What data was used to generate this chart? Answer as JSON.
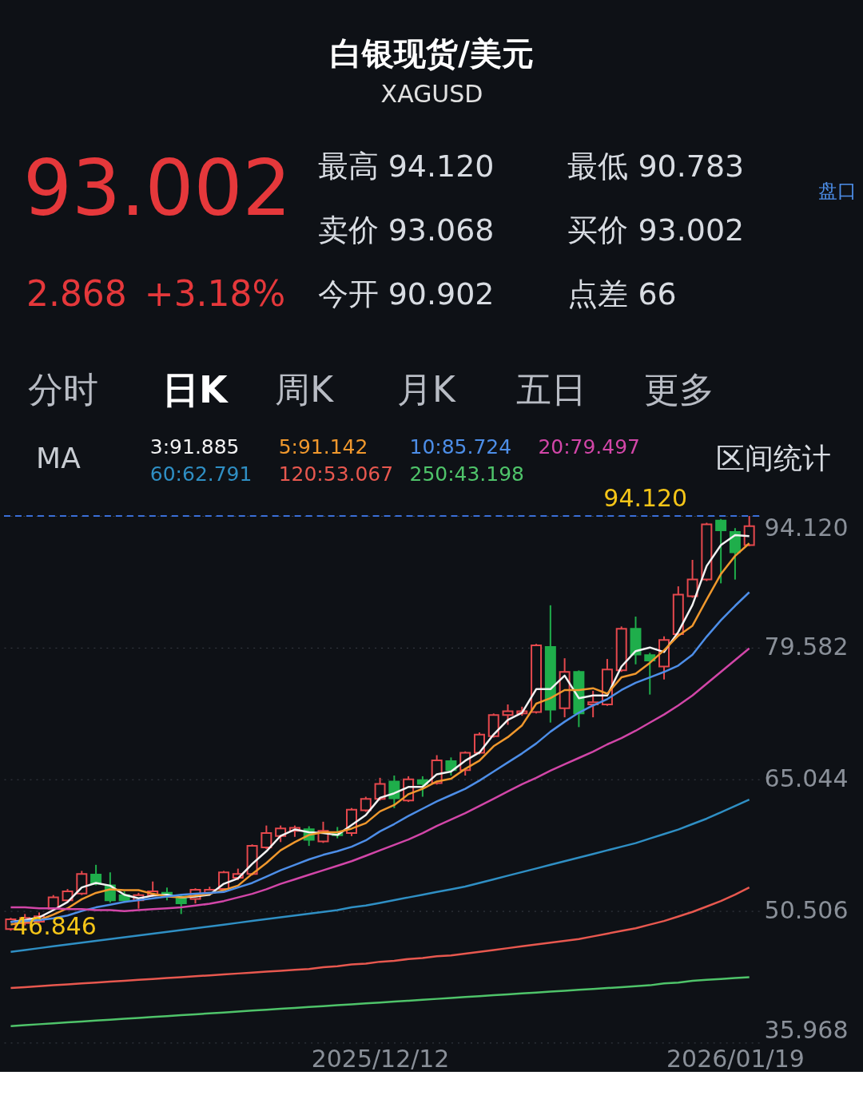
{
  "chart_data": {
    "type": "candlestick",
    "title": "白银现货/美元",
    "subtitle": "XAGUSD",
    "categories": [
      null,
      null,
      null,
      null,
      null,
      null,
      null,
      null,
      null,
      null,
      null,
      null,
      null,
      null,
      null,
      null,
      null,
      null,
      null,
      null,
      null,
      null,
      null,
      null,
      null,
      null,
      "2025/12/12",
      null,
      null,
      null,
      null,
      null,
      null,
      null,
      null,
      null,
      null,
      null,
      null,
      null,
      null,
      null,
      null,
      null,
      null,
      null,
      null,
      null,
      null,
      null,
      null,
      "2026/01/19",
      null
    ],
    "ohlc": [
      [
        48.5,
        49.75,
        48.33,
        49.59
      ],
      [
        49.17,
        50.17,
        48.92,
        49.75
      ],
      [
        49.33,
        50.34,
        49.17,
        49.92
      ],
      [
        50.76,
        52.26,
        50.59,
        52.01
      ],
      [
        51.68,
        52.93,
        51.51,
        52.68
      ],
      [
        52.43,
        54.93,
        52.26,
        54.6
      ],
      [
        54.52,
        55.6,
        53.34,
        53.51
      ],
      [
        53.34,
        54.77,
        51.43,
        51.68
      ],
      [
        52.26,
        52.68,
        51.43,
        51.68
      ],
      [
        51.68,
        52.51,
        50.76,
        52.26
      ],
      [
        52.26,
        53.76,
        52.09,
        52.68
      ],
      [
        52.51,
        53.09,
        51.68,
        52.09
      ],
      [
        52.09,
        52.26,
        50.17,
        51.34
      ],
      [
        51.84,
        53.01,
        51.34,
        52.84
      ],
      [
        52.51,
        53.18,
        52.34,
        52.84
      ],
      [
        52.93,
        54.93,
        52.76,
        54.77
      ],
      [
        54.18,
        55.18,
        53.93,
        54.6
      ],
      [
        54.6,
        57.86,
        54.43,
        57.69
      ],
      [
        57.52,
        59.94,
        57.35,
        59.11
      ],
      [
        58.77,
        59.94,
        58.11,
        59.61
      ],
      [
        59.36,
        59.94,
        58.69,
        59.69
      ],
      [
        59.53,
        59.86,
        57.69,
        58.36
      ],
      [
        58.19,
        60.36,
        58.02,
        59.36
      ],
      [
        59.19,
        59.78,
        58.53,
        58.86
      ],
      [
        59.11,
        61.87,
        58.77,
        61.7
      ],
      [
        61.62,
        63.12,
        61.45,
        62.87
      ],
      [
        62.87,
        65.21,
        62.7,
        64.54
      ],
      [
        64.79,
        65.46,
        61.87,
        62.95
      ],
      [
        62.7,
        65.38,
        62.54,
        65.04
      ],
      [
        64.96,
        65.38,
        63.12,
        64.54
      ],
      [
        64.63,
        67.71,
        64.46,
        67.13
      ],
      [
        67.05,
        67.46,
        65.46,
        66.05
      ],
      [
        66.05,
        68.13,
        65.46,
        67.97
      ],
      [
        67.97,
        70.22,
        67.8,
        69.97
      ],
      [
        69.8,
        72.31,
        69.64,
        72.15
      ],
      [
        72.15,
        73.31,
        71.06,
        72.56
      ],
      [
        72.31,
        73.06,
        72.06,
        72.56
      ],
      [
        72.48,
        80.0,
        72.31,
        79.83
      ],
      [
        79.66,
        84.26,
        71.31,
        72.73
      ],
      [
        72.9,
        78.41,
        71.89,
        76.9
      ],
      [
        76.9,
        77.07,
        70.81,
        72.31
      ],
      [
        73.31,
        74.82,
        71.89,
        73.56
      ],
      [
        73.31,
        78.33,
        73.15,
        77.16
      ],
      [
        77.07,
        81.92,
        76.9,
        81.67
      ],
      [
        81.67,
        83.01,
        77.74,
        78.83
      ],
      [
        78.75,
        79.0,
        74.4,
        78.16
      ],
      [
        77.49,
        80.83,
        76.07,
        80.42
      ],
      [
        81.08,
        86.35,
        80.92,
        85.43
      ],
      [
        85.26,
        89.27,
        85.09,
        87.1
      ],
      [
        87.1,
        93.37,
        86.93,
        93.2
      ],
      [
        93.62,
        93.79,
        86.68,
        92.53
      ],
      [
        92.36,
        92.78,
        87.1,
        90.11
      ],
      [
        90.902,
        94.12,
        90.783,
        93.002
      ]
    ],
    "colors": [
      "#e5484d",
      "#e5484d",
      "#e5484d",
      "#e5484d",
      "#e5484d",
      "#e5484d",
      "#1fae4b",
      "#1fae4b",
      "#1fae4b",
      "#e5484d",
      "#e5484d",
      "#1fae4b",
      "#1fae4b",
      "#e5484d",
      "#e5484d",
      "#e5484d",
      "#e5484d",
      "#e5484d",
      "#e5484d",
      "#e5484d",
      "#e5484d",
      "#1fae4b",
      "#e5484d",
      "#1fae4b",
      "#e5484d",
      "#e5484d",
      "#e5484d",
      "#1fae4b",
      "#e5484d",
      "#1fae4b",
      "#e5484d",
      "#1fae4b",
      "#e5484d",
      "#e5484d",
      "#e5484d",
      "#e5484d",
      "#e5484d",
      "#e5484d",
      "#1fae4b",
      "#e5484d",
      "#1fae4b",
      "#e5484d",
      "#e5484d",
      "#e5484d",
      "#1fae4b",
      "#1fae4b",
      "#e5484d",
      "#e5484d",
      "#e5484d",
      "#e5484d",
      "#1fae4b",
      "#1fae4b",
      "#e5484d"
    ],
    "series": [
      {
        "type": "line",
        "name": "3:91.885",
        "color": "#f2f2f2",
        "values": [
          49.3,
          49.5,
          49.8,
          50.6,
          51.5,
          53.1,
          53.6,
          53.3,
          52.3,
          51.9,
          52.2,
          52.3,
          52.0,
          52.1,
          52.3,
          53.5,
          54.1,
          55.7,
          57.1,
          58.8,
          59.5,
          59.2,
          59.1,
          58.9,
          60.0,
          61.1,
          63.0,
          63.5,
          64.2,
          64.2,
          65.6,
          65.9,
          67.1,
          68.0,
          70.0,
          71.6,
          72.4,
          75.0,
          75.0,
          76.5,
          74.0,
          74.3,
          74.3,
          77.5,
          79.2,
          79.6,
          79.1,
          81.3,
          84.3,
          88.6,
          90.9,
          92.0,
          91.9
        ]
      },
      {
        "type": "line",
        "name": "5:91.142",
        "color": "#f0982d",
        "values": [
          49.0,
          49.3,
          49.5,
          50.1,
          50.8,
          51.8,
          52.5,
          52.9,
          52.8,
          52.8,
          52.4,
          52.1,
          52.0,
          52.2,
          52.4,
          52.8,
          53.3,
          54.6,
          55.8,
          57.2,
          58.1,
          58.9,
          59.2,
          59.2,
          59.6,
          60.2,
          61.5,
          62.2,
          63.4,
          64.0,
          64.8,
          65.1,
          66.2,
          67.1,
          68.7,
          69.7,
          71.0,
          73.4,
          74.0,
          74.9,
          74.9,
          75.1,
          74.5,
          76.3,
          76.7,
          77.9,
          79.3,
          80.9,
          82.0,
          84.9,
          87.7,
          89.7,
          91.1
        ]
      },
      {
        "type": "line",
        "name": "10:85.724",
        "color": "#4d8ee8",
        "values": [
          49.3,
          49.4,
          49.5,
          49.7,
          50.0,
          50.5,
          50.9,
          51.2,
          51.5,
          51.7,
          51.9,
          52.1,
          52.3,
          52.4,
          52.5,
          52.6,
          53.1,
          53.6,
          54.3,
          55.0,
          55.6,
          56.2,
          56.7,
          57.1,
          57.6,
          58.3,
          59.3,
          60.1,
          61.0,
          61.8,
          62.6,
          63.3,
          64.0,
          64.9,
          65.9,
          66.9,
          67.9,
          69.0,
          70.3,
          71.4,
          72.4,
          73.2,
          73.9,
          74.9,
          75.7,
          76.3,
          76.9,
          77.6,
          78.8,
          80.8,
          82.6,
          84.2,
          85.7
        ]
      },
      {
        "type": "line",
        "name": "20:79.497",
        "color": "#d246a8",
        "values": [
          50.9,
          50.9,
          50.8,
          50.8,
          50.7,
          50.7,
          50.6,
          50.6,
          50.5,
          50.6,
          50.7,
          50.8,
          50.9,
          51.1,
          51.3,
          51.6,
          52.0,
          52.4,
          52.9,
          53.5,
          54.0,
          54.5,
          55.0,
          55.5,
          56.0,
          56.6,
          57.2,
          57.8,
          58.4,
          59.1,
          59.9,
          60.6,
          61.3,
          62.1,
          62.9,
          63.7,
          64.5,
          65.2,
          66.0,
          66.7,
          67.4,
          68.1,
          68.9,
          69.6,
          70.4,
          71.3,
          72.2,
          73.2,
          74.3,
          75.6,
          76.9,
          78.2,
          79.5
        ]
      },
      {
        "type": "line",
        "name": "60:62.791",
        "color": "#2f8fc4",
        "values": [
          46.0,
          46.2,
          46.4,
          46.6,
          46.8,
          47.0,
          47.2,
          47.4,
          47.6,
          47.8,
          48.0,
          48.2,
          48.4,
          48.6,
          48.8,
          49.0,
          49.2,
          49.4,
          49.6,
          49.8,
          50.0,
          50.2,
          50.4,
          50.6,
          50.9,
          51.1,
          51.4,
          51.7,
          52.0,
          52.3,
          52.6,
          52.9,
          53.2,
          53.6,
          54.0,
          54.4,
          54.8,
          55.2,
          55.6,
          56.0,
          56.4,
          56.8,
          57.2,
          57.6,
          58.0,
          58.5,
          59.0,
          59.5,
          60.1,
          60.7,
          61.4,
          62.1,
          62.8
        ]
      },
      {
        "type": "line",
        "name": "120:53.067",
        "color": "#e8584f",
        "values": [
          42.0,
          42.1,
          42.2,
          42.3,
          42.4,
          42.5,
          42.6,
          42.7,
          42.8,
          42.9,
          43.0,
          43.1,
          43.2,
          43.3,
          43.4,
          43.5,
          43.6,
          43.7,
          43.8,
          43.9,
          44.0,
          44.1,
          44.3,
          44.4,
          44.6,
          44.7,
          44.9,
          45.0,
          45.2,
          45.3,
          45.5,
          45.6,
          45.8,
          46.0,
          46.2,
          46.4,
          46.6,
          46.8,
          47.0,
          47.2,
          47.4,
          47.7,
          48.0,
          48.3,
          48.6,
          49.0,
          49.4,
          49.9,
          50.4,
          51.0,
          51.6,
          52.3,
          53.1
        ]
      },
      {
        "type": "line",
        "name": "250:43.198",
        "color": "#4fc46a",
        "values": [
          37.8,
          37.9,
          38.0,
          38.1,
          38.2,
          38.3,
          38.4,
          38.5,
          38.6,
          38.7,
          38.8,
          38.9,
          39.0,
          39.1,
          39.2,
          39.3,
          39.4,
          39.5,
          39.6,
          39.7,
          39.8,
          39.9,
          40.0,
          40.1,
          40.2,
          40.3,
          40.4,
          40.5,
          40.6,
          40.7,
          40.8,
          40.9,
          41.0,
          41.1,
          41.2,
          41.3,
          41.4,
          41.5,
          41.6,
          41.7,
          41.8,
          41.9,
          42.0,
          42.1,
          42.2,
          42.3,
          42.5,
          42.6,
          42.8,
          42.9,
          43.0,
          43.1,
          43.2
        ]
      }
    ],
    "ylim": [
      35.968,
      94.12
    ],
    "yticks": [
      35.968,
      50.506,
      65.044,
      79.582,
      {
        "value": 94.12,
        "label": "94.120"
      }
    ],
    "grid": "y",
    "legend": "top left",
    "ref_lines": [
      {
        "axis": "y",
        "value": 94.12,
        "color": "#3a6fd8",
        "line_style": "dashed"
      }
    ],
    "annotations": [
      "93.002",
      "2.868",
      "+3.18%",
      "最高 94.120",
      "最低 90.783",
      "卖价 93.068",
      "买价 93.002",
      "今开 90.902",
      "点差 66",
      "盘口",
      "分时",
      "日K",
      "周K",
      "月K",
      "五日",
      "更多",
      "MA",
      "区间统计",
      {
        "text": "94.120",
        "y": 94.12
      },
      {
        "text": "46.846",
        "y": 46.846
      }
    ]
  }
}
